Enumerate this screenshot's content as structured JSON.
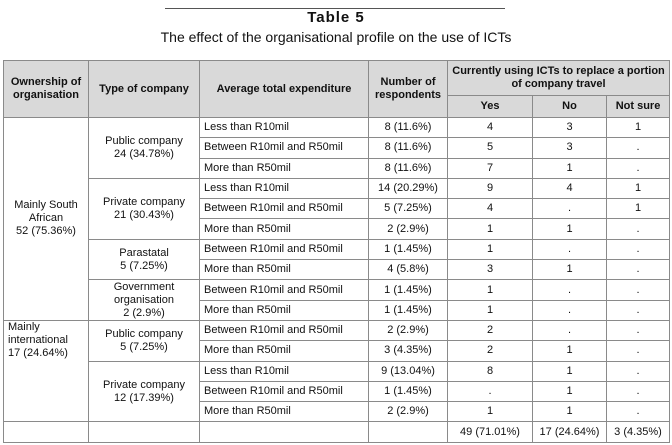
{
  "header": {
    "title": "Table 5",
    "subtitle": "The effect of the organisational profile on the use of ICTs"
  },
  "table": {
    "columns": {
      "ownership": "Ownership of organisation",
      "type": "Type of company",
      "expenditure": "Average total expenditure",
      "respondents": "Number of respondents",
      "using": "Currently using ICTs to replace a portion of company travel",
      "answers": [
        "Yes",
        "No",
        "Not sure"
      ]
    },
    "groups": [
      {
        "name": "Mainly South African",
        "share": "52 (75.36%)",
        "types": [
          {
            "name": "Public company",
            "share": "24 (34.78%)",
            "rows": [
              [
                "Less than R10mil",
                "8 (11.6%)",
                "4",
                "3",
                "1"
              ],
              [
                "Between R10mil and R50mil",
                "8 (11.6%)",
                "5",
                "3",
                "."
              ],
              [
                "More than R50mil",
                "8 (11.6%)",
                "7",
                "1",
                "."
              ]
            ]
          },
          {
            "name": "Private company",
            "share": "21 (30.43%)",
            "rows": [
              [
                "Less than R10mil",
                "14 (20.29%)",
                "9",
                "4",
                "1"
              ],
              [
                "Between R10mil and R50mil",
                "5 (7.25%)",
                "4",
                ".",
                "1"
              ],
              [
                "More than R50mil",
                "2 (2.9%)",
                "1",
                "1",
                "."
              ]
            ]
          },
          {
            "name": "Parastatal",
            "share": "5 (7.25%)",
            "rows": [
              [
                "Between R10mil and R50mil",
                "1 (1.45%)",
                "1",
                ".",
                "."
              ],
              [
                "More than R50mil",
                "4 (5.8%)",
                "3",
                "1",
                "."
              ]
            ]
          },
          {
            "name": "Government organisation",
            "share": "2 (2.9%)",
            "rows": [
              [
                "Between R10mil and R50mil",
                "1 (1.45%)",
                "1",
                ".",
                "."
              ],
              [
                "More than R50mil",
                "1 (1.45%)",
                "1",
                ".",
                "."
              ]
            ]
          }
        ]
      },
      {
        "name": "Mainly international",
        "share": "17 (24.64%)",
        "types": [
          {
            "name": "Public company",
            "share": "5 (7.25%)",
            "rows": [
              [
                "Between R10mil and R50mil",
                "2 (2.9%)",
                "2",
                ".",
                "."
              ],
              [
                "More than R50mil",
                "3 (4.35%)",
                "2",
                "1",
                "."
              ]
            ]
          },
          {
            "name": "Private company",
            "share": "12 (17.39%)",
            "rows": [
              [
                "Less than R10mil",
                "9 (13.04%)",
                "8",
                "1",
                "."
              ],
              [
                "Between R10mil and R50mil",
                "1 (1.45%)",
                ".",
                "1",
                "."
              ],
              [
                "More than R50mil",
                "2 (2.9%)",
                "1",
                "1",
                "."
              ]
            ]
          }
        ]
      }
    ],
    "totals": [
      "49 (71.01%)",
      "17 (24.64%)",
      "3 (4.35%)"
    ]
  }
}
